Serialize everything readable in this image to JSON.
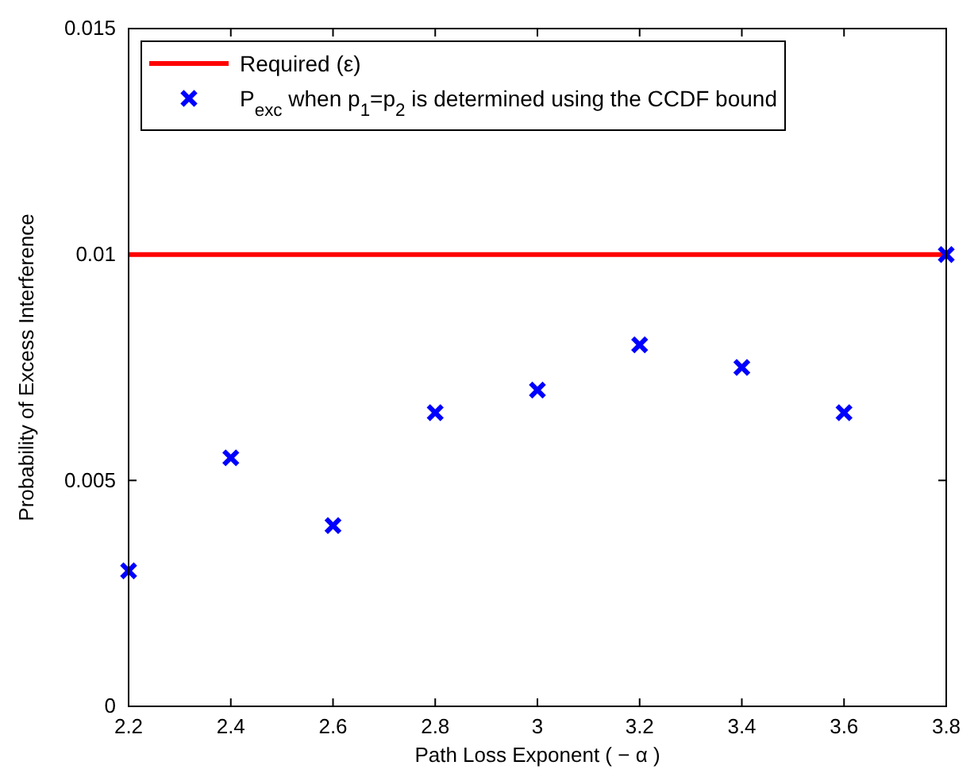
{
  "chart_data": {
    "type": "scatter",
    "xlabel": "Path Loss Exponent ( − α )",
    "ylabel": "Probability of Excess Interference",
    "xlim": [
      2.2,
      3.8
    ],
    "xticks": [
      2.2,
      2.4,
      2.6,
      2.8,
      3,
      3.2,
      3.4,
      3.6,
      3.8
    ],
    "ylim": [
      0,
      0.015
    ],
    "yticks": [
      0,
      0.005,
      0.01,
      0.015
    ],
    "grid": false,
    "legend": "top left",
    "series": [
      {
        "type": "line",
        "name": "Required (ε)",
        "color": "#ff0000",
        "x": [
          2.2,
          3.8
        ],
        "values": [
          0.01,
          0.01
        ],
        "line_style": "solid"
      },
      {
        "marker": "cross",
        "name": "P$_{exc}$ when p$_{1}$=p$_{2}$ is determined using the CCDF bound",
        "color": "#0000ff",
        "x": [
          2.2,
          2.4,
          2.6,
          2.8,
          3,
          3.2,
          3.4,
          3.6,
          3.8
        ],
        "values": [
          0.003,
          0.0055,
          0.004,
          0.0065,
          0.007,
          0.008,
          0.0075,
          0.0065,
          0.01
        ]
      }
    ]
  }
}
